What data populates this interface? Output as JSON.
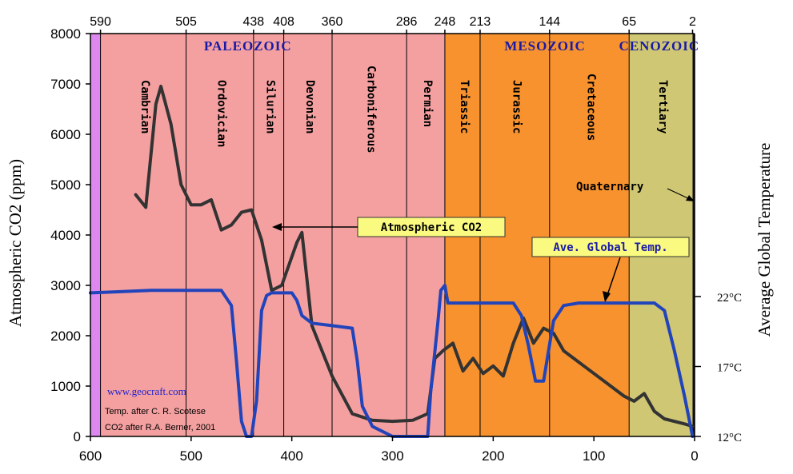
{
  "chart_data": {
    "type": "line",
    "x_axis": {
      "ticks": [
        600,
        500,
        400,
        300,
        200,
        100,
        0
      ],
      "range": [
        600,
        0
      ],
      "reversed": true
    },
    "top_axis_ticks": [
      "590",
      "505",
      "438",
      "408",
      "360",
      "286",
      "248",
      "213",
      "144",
      "65",
      "2"
    ],
    "y_axis_left": {
      "label": "Atmospheric CO2 (ppm)",
      "ticks": [
        0,
        1000,
        2000,
        3000,
        4000,
        5000,
        6000,
        7000,
        8000
      ],
      "range": [
        0,
        8000
      ]
    },
    "y_axis_right": {
      "label": "Average Global Temperature",
      "ticks": [
        {
          "label": "12°C",
          "value": 12
        },
        {
          "label": "17°C",
          "value": 17
        },
        {
          "label": "22°C",
          "value": 22
        }
      ]
    },
    "eras": [
      {
        "name": "PALEOZOIC"
      },
      {
        "name": "MESOZOIC"
      },
      {
        "name": "CENOZOIC"
      }
    ],
    "periods": [
      {
        "name": "Cambrian",
        "start": 590,
        "end": 505,
        "color": "#f4a0a0"
      },
      {
        "name": "Ordovician",
        "start": 505,
        "end": 438,
        "color": "#f4a0a0"
      },
      {
        "name": "Silurian",
        "start": 438,
        "end": 408,
        "color": "#f4a0a0"
      },
      {
        "name": "Devonian",
        "start": 408,
        "end": 360,
        "color": "#f4a0a0"
      },
      {
        "name": "Carboniferous",
        "start": 360,
        "end": 286,
        "color": "#f4a0a0"
      },
      {
        "name": "Permian",
        "start": 286,
        "end": 248,
        "color": "#f4a0a0"
      },
      {
        "name": "Triassic",
        "start": 248,
        "end": 213,
        "color": "#f7922e"
      },
      {
        "name": "Jurassic",
        "start": 213,
        "end": 144,
        "color": "#f7922e"
      },
      {
        "name": "Cretaceous",
        "start": 144,
        "end": 65,
        "color": "#f7922e"
      },
      {
        "name": "Tertiary",
        "start": 65,
        "end": 2,
        "color": "#cfc773"
      }
    ],
    "quaternary_label": "Quaternary",
    "series": [
      {
        "name": "Atmospheric CO2",
        "color": "#333333",
        "points": [
          [
            555,
            4800
          ],
          [
            545,
            4550
          ],
          [
            535,
            6600
          ],
          [
            530,
            6950
          ],
          [
            520,
            6200
          ],
          [
            510,
            5000
          ],
          [
            500,
            4600
          ],
          [
            490,
            4600
          ],
          [
            480,
            4700
          ],
          [
            470,
            4100
          ],
          [
            460,
            4200
          ],
          [
            450,
            4450
          ],
          [
            440,
            4500
          ],
          [
            430,
            3900
          ],
          [
            420,
            2900
          ],
          [
            410,
            3000
          ],
          [
            395,
            3850
          ],
          [
            390,
            4050
          ],
          [
            380,
            2200
          ],
          [
            360,
            1200
          ],
          [
            340,
            450
          ],
          [
            320,
            320
          ],
          [
            300,
            300
          ],
          [
            280,
            320
          ],
          [
            265,
            450
          ],
          [
            258,
            1550
          ],
          [
            250,
            1700
          ],
          [
            240,
            1850
          ],
          [
            230,
            1300
          ],
          [
            220,
            1550
          ],
          [
            210,
            1250
          ],
          [
            200,
            1400
          ],
          [
            190,
            1200
          ],
          [
            180,
            1850
          ],
          [
            170,
            2350
          ],
          [
            160,
            1850
          ],
          [
            150,
            2150
          ],
          [
            140,
            2050
          ],
          [
            130,
            1700
          ],
          [
            110,
            1400
          ],
          [
            90,
            1100
          ],
          [
            70,
            800
          ],
          [
            60,
            700
          ],
          [
            50,
            850
          ],
          [
            40,
            500
          ],
          [
            30,
            350
          ],
          [
            10,
            250
          ],
          [
            2,
            200
          ]
        ]
      },
      {
        "name": "Ave. Global Temp.",
        "color": "#2244bb",
        "points": [
          [
            600,
            2850
          ],
          [
            540,
            2900
          ],
          [
            470,
            2900
          ],
          [
            460,
            2600
          ],
          [
            455,
            1500
          ],
          [
            450,
            300
          ],
          [
            445,
            0
          ],
          [
            440,
            0
          ],
          [
            435,
            700
          ],
          [
            430,
            2500
          ],
          [
            425,
            2800
          ],
          [
            420,
            2850
          ],
          [
            400,
            2850
          ],
          [
            395,
            2700
          ],
          [
            390,
            2400
          ],
          [
            380,
            2250
          ],
          [
            360,
            2200
          ],
          [
            340,
            2150
          ],
          [
            335,
            1500
          ],
          [
            330,
            600
          ],
          [
            320,
            200
          ],
          [
            300,
            0
          ],
          [
            265,
            0
          ],
          [
            262,
            900
          ],
          [
            255,
            2250
          ],
          [
            252,
            2900
          ],
          [
            248,
            3000
          ],
          [
            245,
            2650
          ],
          [
            180,
            2650
          ],
          [
            172,
            2400
          ],
          [
            165,
            1800
          ],
          [
            158,
            1100
          ],
          [
            150,
            1100
          ],
          [
            145,
            1700
          ],
          [
            140,
            2300
          ],
          [
            130,
            2600
          ],
          [
            115,
            2650
          ],
          [
            40,
            2650
          ],
          [
            30,
            2500
          ],
          [
            20,
            1700
          ],
          [
            10,
            800
          ],
          [
            2,
            0
          ]
        ]
      }
    ],
    "annotations": [
      {
        "text": "Atmospheric CO2",
        "color": "#fafa80"
      },
      {
        "text": "Ave. Global Temp.",
        "color": "#fafa80",
        "text_color": "#1a1aa6"
      },
      {
        "text": "Quaternary"
      }
    ],
    "credits": {
      "web": "www.geocraft.com",
      "line1": "Temp. after C. R. Scotese",
      "line2": "CO2 after R.A. Berner, 2001"
    }
  }
}
